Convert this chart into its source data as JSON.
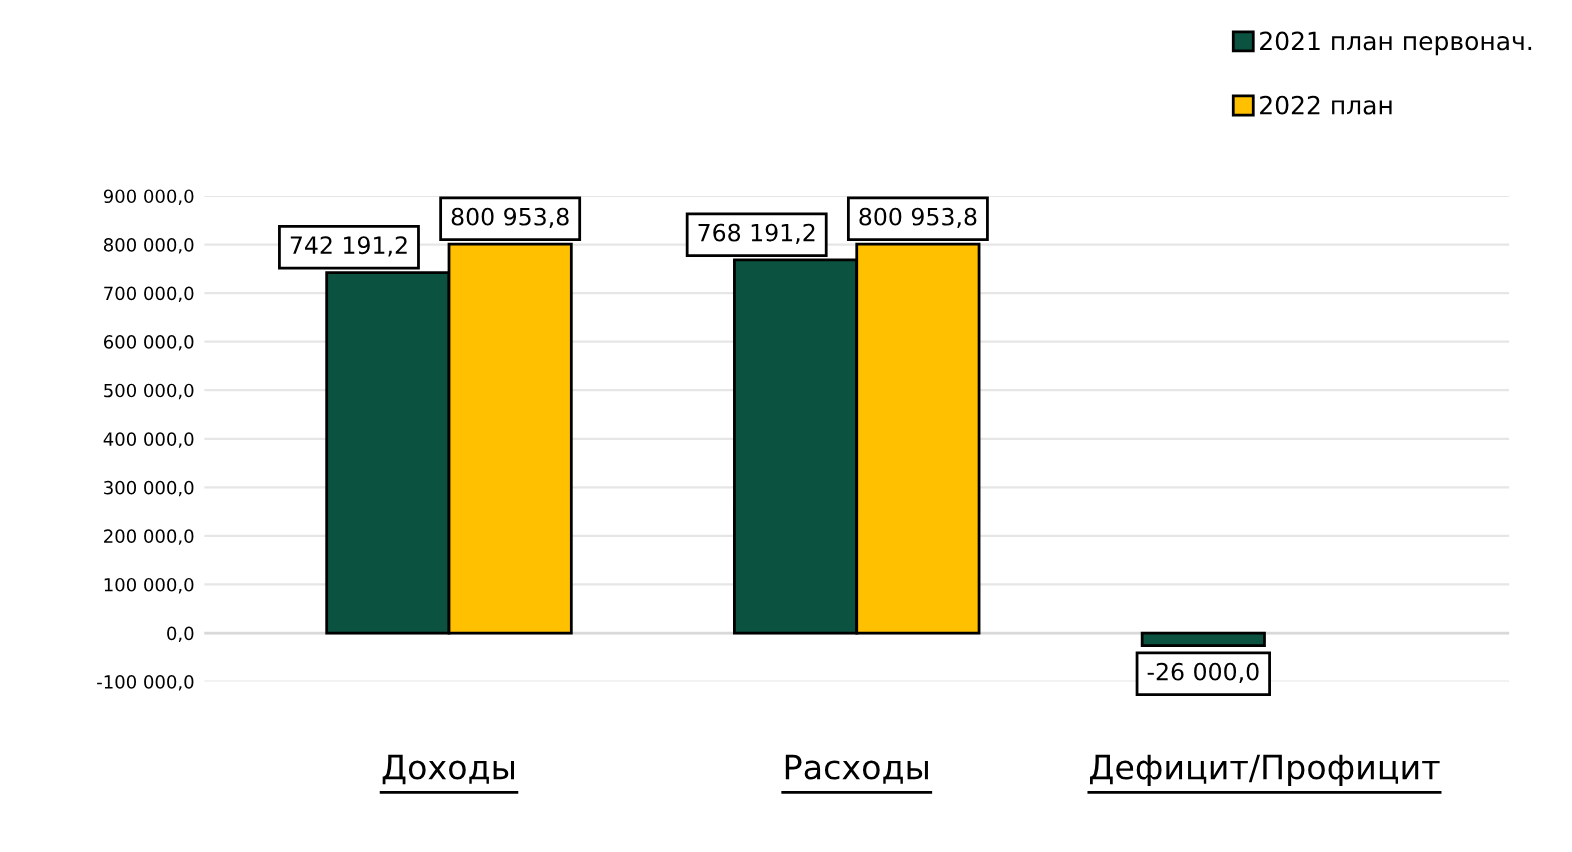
{
  "chart_data": {
    "type": "bar",
    "categories": [
      "Доходы",
      "Расходы",
      "Дефицит/Профицит"
    ],
    "series": [
      {
        "name": "2021 план первонач.",
        "color": "#0b5240",
        "values": [
          742191.2,
          768191.2,
          -26000.0
        ],
        "value_labels": [
          "742 191,2",
          "768 191,2",
          "-26 000,0"
        ]
      },
      {
        "name": "2022 план",
        "color": "#ffc000",
        "values": [
          800953.8,
          800953.8,
          null
        ],
        "value_labels": [
          "800 953,8",
          "800 953,8",
          null
        ]
      }
    ],
    "ylim": [
      -100000,
      900000
    ],
    "yticks": [
      {
        "value": -100000,
        "label": "-100 000,0"
      },
      {
        "value": 0,
        "label": "0,0"
      },
      {
        "value": 100000,
        "label": "100 000,0"
      },
      {
        "value": 200000,
        "label": "200 000,0"
      },
      {
        "value": 300000,
        "label": "300 000,0"
      },
      {
        "value": 400000,
        "label": "400 000,0"
      },
      {
        "value": 500000,
        "label": "500 000,0"
      },
      {
        "value": 600000,
        "label": "600 000,0"
      },
      {
        "value": 700000,
        "label": "700 000,0"
      },
      {
        "value": 800000,
        "label": "800 000,0"
      },
      {
        "value": 900000,
        "label": "900 000,0"
      }
    ],
    "grid": "y",
    "legend": "top right"
  }
}
